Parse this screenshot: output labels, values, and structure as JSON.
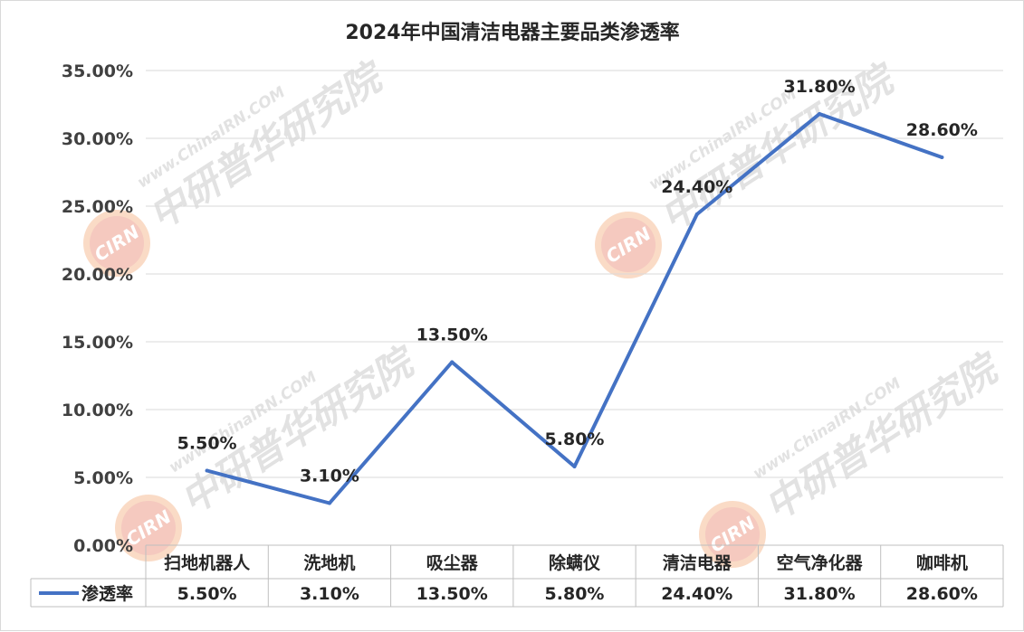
{
  "chart_data": {
    "type": "line",
    "title": "2024年中国清洁电器主要品类渗透率",
    "categories": [
      "扫地机器人",
      "洗地机",
      "吸尘器",
      "除螨仪",
      "清洁电器",
      "空气净化器",
      "咖啡机"
    ],
    "series": [
      {
        "name": "渗透率",
        "values": [
          5.5,
          3.1,
          13.5,
          5.8,
          24.4,
          31.8,
          28.6
        ],
        "labels": [
          "5.50%",
          "3.10%",
          "13.50%",
          "5.80%",
          "24.40%",
          "31.80%",
          "28.60%"
        ],
        "color": "#4472c4"
      }
    ],
    "y_ticks": [
      "0.00%",
      "5.00%",
      "10.00%",
      "15.00%",
      "20.00%",
      "25.00%",
      "30.00%",
      "35.00%"
    ],
    "ylim": [
      0,
      35
    ],
    "y_unit": "%",
    "grid": true,
    "legend": "data table, bottom",
    "data_table": true
  },
  "watermark": {
    "logo": "CIRN",
    "brand": "中研普华研究院",
    "url": "www.ChinaIRN.COM",
    "colors": {
      "orange": "#f4b183",
      "red": "#e06666",
      "gray": "#bfbfbf"
    }
  }
}
